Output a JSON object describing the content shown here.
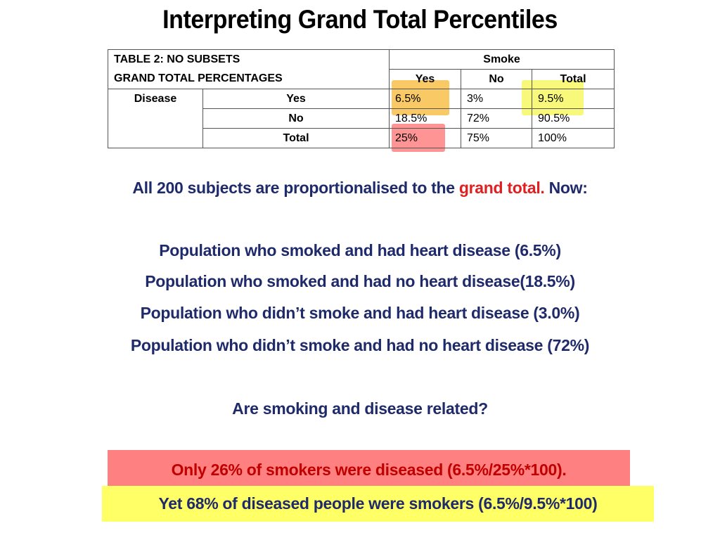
{
  "slide": {
    "title": "Interpreting Grand Total Percentiles"
  },
  "table": {
    "title_line1": "TABLE 2: NO SUBSETS",
    "title_line2": "GRAND TOTAL PERCENTAGES",
    "col_group": "Smoke",
    "columns": [
      "Yes",
      "No",
      "Total"
    ],
    "row_group": "Disease",
    "rows": [
      {
        "label": "Yes",
        "values": [
          "6.5%",
          "3%",
          "9.5%"
        ]
      },
      {
        "label": "No",
        "values": [
          "18.5%",
          "72%",
          "90.5%"
        ]
      },
      {
        "label": "Total",
        "values": [
          "25%",
          "75%",
          "100%"
        ]
      }
    ]
  },
  "body": {
    "intro_prefix": "All 200 subjects are proportionalised to the ",
    "intro_emph": "grand total.",
    "intro_suffix": " Now:",
    "lines": [
      "Population who smoked and had heart disease (6.5%)",
      "Population who smoked and had no heart disease(18.5%)",
      "Population who didn’t smoke and had heart disease (3.0%)",
      "Population who didn’t smoke and had no heart disease (72%)"
    ],
    "question": "Are smoking and disease related?"
  },
  "conclusions": {
    "red_box": "Only 26% of smokers were diseased (6.5%/25%*100).",
    "yellow_box": "Yet 68% of diseased people were smokers (6.5%/9.5%*100)"
  },
  "colors": {
    "title_text": "#000000",
    "body_text": "#1f2a6b",
    "emphasis_red": "#e02020",
    "red_box_bg": "#ff8080",
    "red_box_text": "#c00000",
    "yellow_box_bg": "#ffff66",
    "highlight_orange": "#f7b733",
    "highlight_yellow": "#f5f542",
    "highlight_red": "#ff5a5a"
  }
}
